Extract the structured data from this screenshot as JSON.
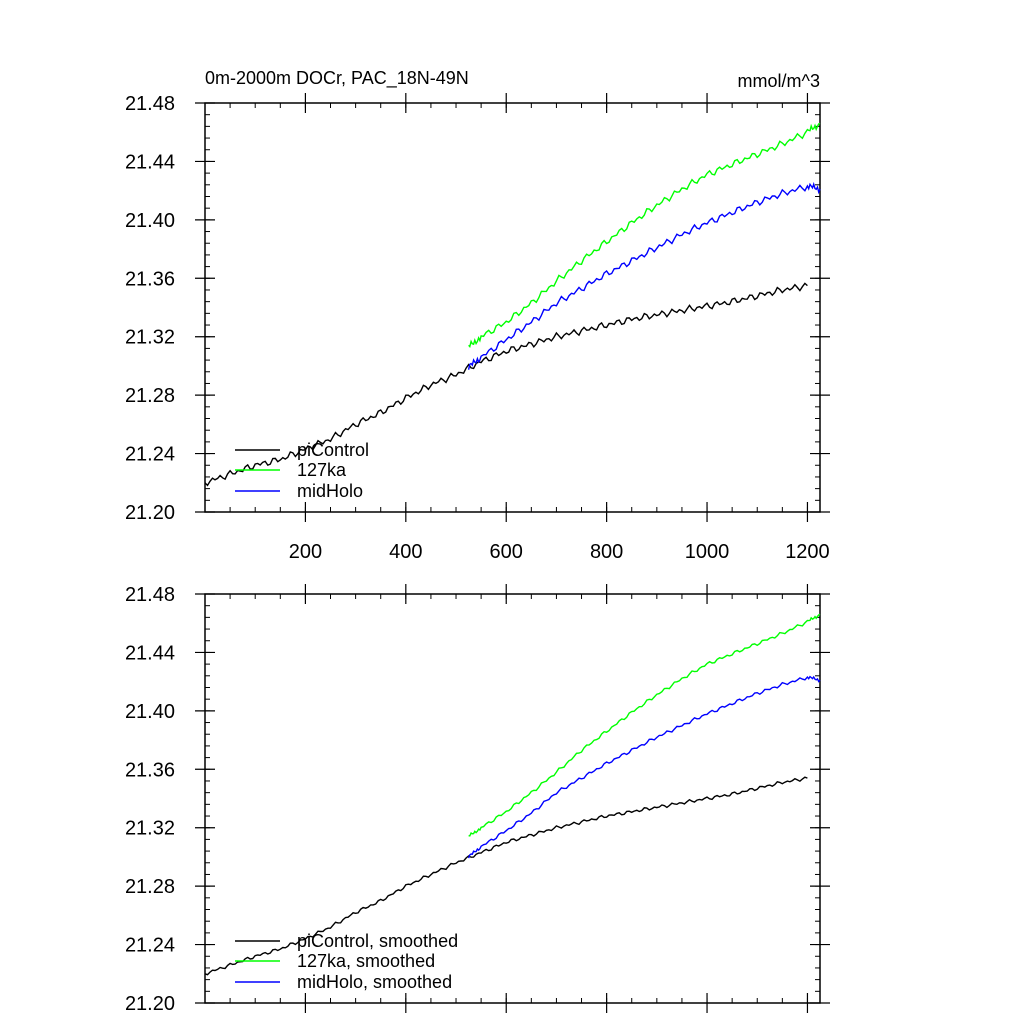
{
  "chart_data": [
    {
      "type": "line",
      "title": "0m-2000m DOCr, PAC_18N-49N",
      "units": "mmol/m^3",
      "xlim": [
        0,
        1225
      ],
      "ylim": [
        21.2,
        21.48
      ],
      "x_ticks": [
        200,
        400,
        600,
        800,
        1000,
        1200
      ],
      "x_tick_labels": [
        "200",
        "400",
        "600",
        "800",
        "1000",
        "1200"
      ],
      "x_minor_step": 50,
      "y_ticks": [
        21.2,
        21.24,
        21.28,
        21.32,
        21.36,
        21.4,
        21.44,
        21.48
      ],
      "y_tick_labels": [
        "21.20",
        "21.24",
        "21.28",
        "21.32",
        "21.36",
        "21.40",
        "21.44",
        "21.48"
      ],
      "y_minor_step": 0.008,
      "legend_position": "bottom-left",
      "series": [
        {
          "name": "piControl",
          "color": "#000000",
          "x": [
            0,
            50,
            100,
            150,
            200,
            250,
            300,
            350,
            400,
            450,
            500,
            550,
            600,
            650,
            700,
            750,
            800,
            850,
            900,
            950,
            1000,
            1050,
            1100,
            1150,
            1200
          ],
          "values": [
            21.22,
            21.226,
            21.232,
            21.236,
            21.243,
            21.25,
            21.26,
            21.268,
            21.278,
            21.287,
            21.294,
            21.303,
            21.31,
            21.315,
            21.32,
            21.324,
            21.328,
            21.332,
            21.335,
            21.338,
            21.341,
            21.344,
            21.348,
            21.352,
            21.355
          ]
        },
        {
          "name": "127ka",
          "color": "#00ff00",
          "x": [
            525,
            550,
            600,
            650,
            700,
            750,
            800,
            850,
            900,
            950,
            1000,
            1050,
            1100,
            1150,
            1200,
            1225
          ],
          "values": [
            21.313,
            21.32,
            21.33,
            21.343,
            21.358,
            21.372,
            21.385,
            21.398,
            21.41,
            21.421,
            21.431,
            21.438,
            21.445,
            21.452,
            21.46,
            21.466
          ]
        },
        {
          "name": "midHolo",
          "color": "#0000ff",
          "x": [
            525,
            550,
            600,
            650,
            700,
            750,
            800,
            850,
            900,
            950,
            1000,
            1050,
            1100,
            1150,
            1200,
            1225
          ],
          "values": [
            21.299,
            21.306,
            21.318,
            21.33,
            21.343,
            21.353,
            21.363,
            21.372,
            21.381,
            21.39,
            21.398,
            21.405,
            21.412,
            21.418,
            21.423,
            21.421
          ]
        }
      ]
    },
    {
      "type": "line",
      "xlim": [
        0,
        1225
      ],
      "ylim": [
        21.2,
        21.48
      ],
      "x_ticks": [
        200,
        400,
        600,
        800,
        1000,
        1200
      ],
      "x_minor_step": 50,
      "y_ticks": [
        21.2,
        21.24,
        21.28,
        21.32,
        21.36,
        21.4,
        21.44,
        21.48
      ],
      "y_tick_labels": [
        "21.20",
        "21.24",
        "21.28",
        "21.32",
        "21.36",
        "21.40",
        "21.44",
        "21.48"
      ],
      "y_minor_step": 0.008,
      "legend_position": "bottom-left",
      "series": [
        {
          "name": "piControl, smoothed",
          "color": "#000000",
          "x": [
            0,
            50,
            100,
            150,
            200,
            250,
            300,
            350,
            400,
            450,
            500,
            550,
            600,
            650,
            700,
            750,
            800,
            850,
            900,
            950,
            1000,
            1050,
            1100,
            1150,
            1200
          ],
          "values": [
            21.22,
            21.226,
            21.232,
            21.237,
            21.244,
            21.252,
            21.262,
            21.27,
            21.28,
            21.288,
            21.296,
            21.303,
            21.31,
            21.315,
            21.32,
            21.324,
            21.328,
            21.331,
            21.334,
            21.337,
            21.34,
            21.343,
            21.347,
            21.351,
            21.354
          ]
        },
        {
          "name": "127ka, smoothed",
          "color": "#00ff00",
          "x": [
            525,
            550,
            600,
            650,
            700,
            750,
            800,
            850,
            900,
            950,
            1000,
            1050,
            1100,
            1150,
            1200,
            1225
          ],
          "values": [
            21.314,
            21.32,
            21.331,
            21.344,
            21.358,
            21.373,
            21.386,
            21.399,
            21.411,
            21.422,
            21.432,
            21.439,
            21.446,
            21.453,
            21.461,
            21.466
          ]
        },
        {
          "name": "midHolo, smoothed",
          "color": "#0000ff",
          "x": [
            525,
            550,
            600,
            650,
            700,
            750,
            800,
            850,
            900,
            950,
            1000,
            1050,
            1100,
            1150,
            1200,
            1225
          ],
          "values": [
            21.3,
            21.307,
            21.318,
            21.33,
            21.344,
            21.354,
            21.364,
            21.373,
            21.382,
            21.39,
            21.398,
            21.405,
            21.412,
            21.418,
            21.423,
            21.421
          ]
        }
      ]
    }
  ]
}
